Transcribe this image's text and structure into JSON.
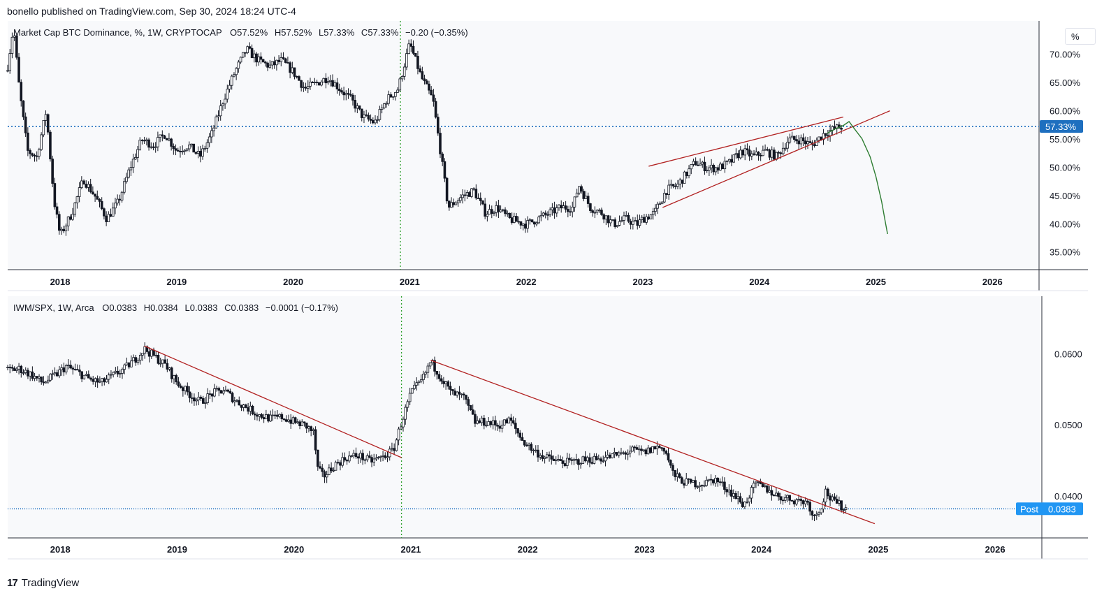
{
  "header": {
    "publish_line": "bonello published on TradingView.com, Sep 30, 2024 18:24 UTC-4"
  },
  "footer": {
    "brand": "TradingView",
    "logo": "tradingview-logo"
  },
  "colors": {
    "candle": "#131722",
    "trendline": "#b22222",
    "projection": "#2e7d32",
    "last_price_line": "#1e6fbf",
    "last_price_bg": "#1e6fbf",
    "post_bg": "#2196f3",
    "divider": "#2ca02c"
  },
  "chart_data": [
    {
      "type": "candlestick",
      "legend": "Market Cap BTC Dominance, %, 1W, CRYPTOCAP",
      "ohlc": {
        "open_label": "O",
        "open": "57.52%",
        "high_label": "H",
        "high": "57.52%",
        "low_label": "L",
        "low": "57.33%",
        "close_label": "C",
        "close": "57.33%",
        "change": "−0.20 (−0.35%)"
      },
      "unit_button": "%",
      "last_value": "57.33%",
      "ylim": [
        32,
        76
      ],
      "xlim": [
        2017.55,
        2026.4
      ],
      "y_ticks": [
        {
          "v": 35,
          "label": "35.00%"
        },
        {
          "v": 40,
          "label": "40.00%"
        },
        {
          "v": 45,
          "label": "45.00%"
        },
        {
          "v": 50,
          "label": "50.00%"
        },
        {
          "v": 55,
          "label": "55.00%"
        },
        {
          "v": 60,
          "label": "60.00%"
        },
        {
          "v": 65,
          "label": "65.00%"
        },
        {
          "v": 70,
          "label": "70.00%"
        }
      ],
      "x_ticks": [
        {
          "v": 2018,
          "label": "2018"
        },
        {
          "v": 2019,
          "label": "2019"
        },
        {
          "v": 2020,
          "label": "2020"
        },
        {
          "v": 2021,
          "label": "2021"
        },
        {
          "v": 2022,
          "label": "2022"
        },
        {
          "v": 2023,
          "label": "2023"
        },
        {
          "v": 2024,
          "label": "2024"
        },
        {
          "v": 2025,
          "label": "2025"
        },
        {
          "v": 2026,
          "label": "2026"
        }
      ],
      "series_path": [
        [
          2017.55,
          68
        ],
        [
          2017.6,
          75
        ],
        [
          2017.65,
          64
        ],
        [
          2017.72,
          53
        ],
        [
          2017.8,
          52
        ],
        [
          2017.88,
          60
        ],
        [
          2017.95,
          44
        ],
        [
          2018.0,
          38
        ],
        [
          2018.1,
          42
        ],
        [
          2018.2,
          48
        ],
        [
          2018.3,
          45
        ],
        [
          2018.4,
          41
        ],
        [
          2018.5,
          44
        ],
        [
          2018.6,
          50
        ],
        [
          2018.7,
          55
        ],
        [
          2018.8,
          54
        ],
        [
          2018.9,
          56
        ],
        [
          2019.0,
          53
        ],
        [
          2019.1,
          54
        ],
        [
          2019.2,
          52
        ],
        [
          2019.3,
          56
        ],
        [
          2019.4,
          62
        ],
        [
          2019.5,
          67
        ],
        [
          2019.6,
          71
        ],
        [
          2019.7,
          69
        ],
        [
          2019.8,
          68
        ],
        [
          2019.9,
          69
        ],
        [
          2020.0,
          67
        ],
        [
          2020.1,
          64
        ],
        [
          2020.2,
          65
        ],
        [
          2020.3,
          66
        ],
        [
          2020.4,
          64
        ],
        [
          2020.5,
          62
        ],
        [
          2020.6,
          59
        ],
        [
          2020.7,
          58
        ],
        [
          2020.8,
          62
        ],
        [
          2020.9,
          64
        ],
        [
          2021.0,
          72
        ],
        [
          2021.1,
          66
        ],
        [
          2021.2,
          62
        ],
        [
          2021.27,
          52
        ],
        [
          2021.33,
          43
        ],
        [
          2021.45,
          45
        ],
        [
          2021.55,
          46
        ],
        [
          2021.65,
          42
        ],
        [
          2021.75,
          43
        ],
        [
          2021.85,
          41
        ],
        [
          2022.0,
          40
        ],
        [
          2022.1,
          41
        ],
        [
          2022.2,
          42
        ],
        [
          2022.3,
          43
        ],
        [
          2022.4,
          43
        ],
        [
          2022.45,
          47
        ],
        [
          2022.55,
          43
        ],
        [
          2022.65,
          42
        ],
        [
          2022.75,
          40
        ],
        [
          2022.85,
          41
        ],
        [
          2022.95,
          40
        ],
        [
          2023.0,
          41
        ],
        [
          2023.1,
          42
        ],
        [
          2023.2,
          46
        ],
        [
          2023.3,
          47
        ],
        [
          2023.45,
          51
        ],
        [
          2023.55,
          50
        ],
        [
          2023.65,
          50
        ],
        [
          2023.75,
          51
        ],
        [
          2023.85,
          53
        ],
        [
          2023.95,
          52
        ],
        [
          2024.05,
          53
        ],
        [
          2024.15,
          52
        ],
        [
          2024.25,
          55
        ],
        [
          2024.35,
          55
        ],
        [
          2024.45,
          54
        ],
        [
          2024.55,
          56
        ],
        [
          2024.65,
          57
        ],
        [
          2024.72,
          57.33
        ]
      ],
      "annotations": {
        "upper_trendline": [
          [
            2023.05,
            50.3
          ],
          [
            2024.72,
            59.0
          ]
        ],
        "lower_trendline": [
          [
            2023.17,
            43.0
          ],
          [
            2025.12,
            60.1
          ]
        ],
        "projection_path": [
          [
            2024.58,
            56.1
          ],
          [
            2024.65,
            56.9
          ],
          [
            2024.72,
            57.5
          ],
          [
            2024.77,
            58.2
          ],
          [
            2024.82,
            56.8
          ],
          [
            2024.88,
            55.2
          ],
          [
            2024.95,
            52.0
          ],
          [
            2025.0,
            48.5
          ],
          [
            2025.05,
            44.0
          ],
          [
            2025.08,
            40.5
          ],
          [
            2025.1,
            38.3
          ]
        ],
        "horizontal_level": 57.33,
        "vertical_divider_x": 2020.92
      }
    },
    {
      "type": "candlestick",
      "legend": "IWM/SPX, 1W, Arca",
      "ohlc": {
        "open_label": "O",
        "open": "0.0383",
        "high_label": "H",
        "high": "0.0384",
        "low_label": "L",
        "low": "0.0383",
        "close_label": "C",
        "close": "0.0383",
        "change": "−0.0001 (−0.17%)"
      },
      "last_value": "0.0383",
      "post_label": "Post",
      "ylim": [
        0.0342,
        0.0682
      ],
      "xlim": [
        2017.55,
        2026.4
      ],
      "y_ticks": [
        {
          "v": 0.04,
          "label": "0.0400"
        },
        {
          "v": 0.05,
          "label": "0.0500"
        },
        {
          "v": 0.06,
          "label": "0.0600"
        }
      ],
      "x_ticks": [
        {
          "v": 2018,
          "label": "2018"
        },
        {
          "v": 2019,
          "label": "2019"
        },
        {
          "v": 2020,
          "label": "2020"
        },
        {
          "v": 2021,
          "label": "2021"
        },
        {
          "v": 2022,
          "label": "2022"
        },
        {
          "v": 2023,
          "label": "2023"
        },
        {
          "v": 2024,
          "label": "2024"
        },
        {
          "v": 2025,
          "label": "2025"
        },
        {
          "v": 2026,
          "label": "2026"
        }
      ],
      "series_path": [
        [
          2017.55,
          0.0578
        ],
        [
          2017.65,
          0.058
        ],
        [
          2017.75,
          0.0572
        ],
        [
          2017.85,
          0.056
        ],
        [
          2017.95,
          0.057
        ],
        [
          2018.05,
          0.0583
        ],
        [
          2018.15,
          0.0575
        ],
        [
          2018.25,
          0.0565
        ],
        [
          2018.35,
          0.056
        ],
        [
          2018.45,
          0.057
        ],
        [
          2018.55,
          0.058
        ],
        [
          2018.65,
          0.0595
        ],
        [
          2018.72,
          0.0608
        ],
        [
          2018.8,
          0.0598
        ],
        [
          2018.9,
          0.0585
        ],
        [
          2019.0,
          0.056
        ],
        [
          2019.1,
          0.0545
        ],
        [
          2019.2,
          0.0533
        ],
        [
          2019.3,
          0.0545
        ],
        [
          2019.4,
          0.055
        ],
        [
          2019.5,
          0.0535
        ],
        [
          2019.6,
          0.0525
        ],
        [
          2019.7,
          0.0515
        ],
        [
          2019.8,
          0.051
        ],
        [
          2019.9,
          0.0512
        ],
        [
          2020.0,
          0.0505
        ],
        [
          2020.1,
          0.05
        ],
        [
          2020.17,
          0.049
        ],
        [
          2020.2,
          0.044
        ],
        [
          2020.25,
          0.0428
        ],
        [
          2020.35,
          0.0445
        ],
        [
          2020.45,
          0.0455
        ],
        [
          2020.55,
          0.0458
        ],
        [
          2020.65,
          0.045
        ],
        [
          2020.75,
          0.0455
        ],
        [
          2020.85,
          0.0465
        ],
        [
          2020.92,
          0.0505
        ],
        [
          2021.0,
          0.0545
        ],
        [
          2021.1,
          0.0565
        ],
        [
          2021.17,
          0.059
        ],
        [
          2021.25,
          0.057
        ],
        [
          2021.35,
          0.0545
        ],
        [
          2021.45,
          0.054
        ],
        [
          2021.55,
          0.0505
        ],
        [
          2021.65,
          0.0505
        ],
        [
          2021.75,
          0.05
        ],
        [
          2021.85,
          0.0508
        ],
        [
          2021.95,
          0.048
        ],
        [
          2022.05,
          0.0465
        ],
        [
          2022.15,
          0.0455
        ],
        [
          2022.25,
          0.045
        ],
        [
          2022.35,
          0.0448
        ],
        [
          2022.5,
          0.0452
        ],
        [
          2022.6,
          0.0453
        ],
        [
          2022.75,
          0.0458
        ],
        [
          2022.9,
          0.0465
        ],
        [
          2023.0,
          0.0462
        ],
        [
          2023.1,
          0.047
        ],
        [
          2023.17,
          0.0468
        ],
        [
          2023.25,
          0.043
        ],
        [
          2023.35,
          0.042
        ],
        [
          2023.5,
          0.0418
        ],
        [
          2023.6,
          0.0425
        ],
        [
          2023.75,
          0.0405
        ],
        [
          2023.85,
          0.0388
        ],
        [
          2023.95,
          0.0418
        ],
        [
          2024.05,
          0.041
        ],
        [
          2024.15,
          0.04
        ],
        [
          2024.3,
          0.0395
        ],
        [
          2024.4,
          0.0392
        ],
        [
          2024.45,
          0.037
        ],
        [
          2024.52,
          0.039
        ],
        [
          2024.55,
          0.0408
        ],
        [
          2024.6,
          0.0395
        ],
        [
          2024.7,
          0.0385
        ],
        [
          2024.74,
          0.0383
        ]
      ],
      "annotations": {
        "trendline_1": [
          [
            2018.72,
            0.0612
          ],
          [
            2020.92,
            0.0455
          ]
        ],
        "trendline_2": [
          [
            2021.17,
            0.0592
          ],
          [
            2024.97,
            0.0362
          ]
        ],
        "horizontal_level": 0.0383,
        "vertical_divider_x": 2020.92
      }
    }
  ]
}
